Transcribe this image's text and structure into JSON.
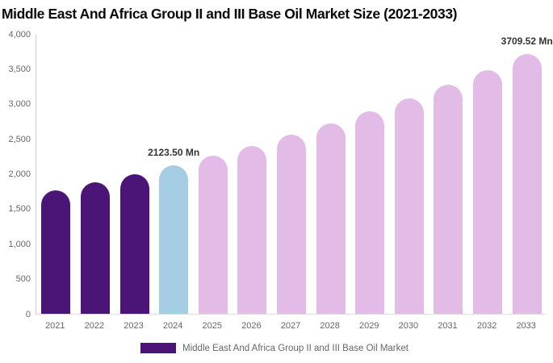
{
  "title": "Middle East And Africa Group II and III Base Oil Market Size (2021-2033)",
  "colors": {
    "historical_bar": "#4A1577",
    "current_bar": "#A4CCE3",
    "forecast_bar": "#E2BBE7",
    "axis_line": "#cccccc",
    "baseline": "#dddddd",
    "title_text": "#0a0a0a",
    "tick_text": "#666666",
    "annotation_text": "#333333"
  },
  "legend": {
    "label": "Middle East And Africa Group II and III Base Oil Market",
    "swatch_color": "#4A1577"
  },
  "chart_data": {
    "type": "bar",
    "title": "Middle East And Africa Group II and III Base Oil Market Size (2021-2033)",
    "unit": "Mn",
    "categories": [
      "2021",
      "2022",
      "2023",
      "2024",
      "2025",
      "2026",
      "2027",
      "2028",
      "2029",
      "2030",
      "2031",
      "2032",
      "2033"
    ],
    "values": [
      1764,
      1876,
      1996,
      2123.5,
      2259,
      2403,
      2557,
      2720,
      2894,
      3079,
      3276,
      3485,
      3709.52
    ],
    "bar_roles": [
      "historical",
      "historical",
      "historical",
      "current",
      "forecast",
      "forecast",
      "forecast",
      "forecast",
      "forecast",
      "forecast",
      "forecast",
      "forecast",
      "forecast"
    ],
    "annotations": [
      {
        "category": "2024",
        "label": "2123.50 Mn"
      },
      {
        "category": "2033",
        "label": "3709.52 Mn"
      }
    ],
    "xlabel": "",
    "ylabel": "",
    "ylim": [
      0,
      4000
    ],
    "ytick_values": [
      0,
      500,
      1000,
      1500,
      2000,
      2500,
      3000,
      3500,
      4000
    ],
    "ytick_labels": [
      "0",
      "500",
      "1,000",
      "1,500",
      "2,000",
      "2,500",
      "3,000",
      "3,500",
      "4,000"
    ],
    "grid": false,
    "legend_position": "bottom"
  }
}
